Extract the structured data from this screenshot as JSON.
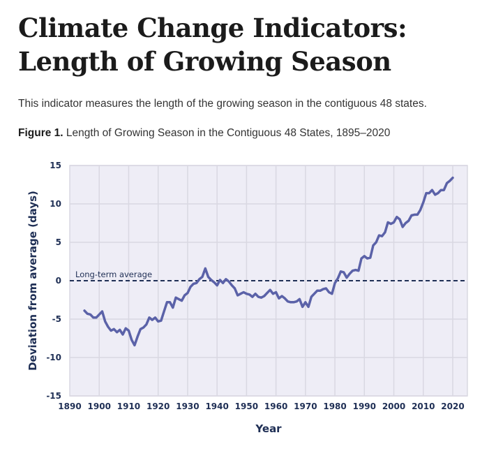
{
  "page": {
    "title_line1": "Climate Change Indicators:",
    "title_line2": "Length of Growing Season",
    "intro": "This indicator measures the length of the growing season in the contiguous 48 states.",
    "figure_label": "Figure 1.",
    "figure_caption": "Length of Growing Season in the Contiguous 48 States, 1895–2020"
  },
  "colors": {
    "line": "#5b62a8",
    "plot_background": "#eeedf6",
    "grid": "#d9d8e2",
    "axis_text": "#1f2f55",
    "reference_line": "#1f2f55"
  },
  "chart_data": {
    "type": "line",
    "title": "Length of Growing Season in the Contiguous 48 States, 1895–2020",
    "xlabel": "Year",
    "ylabel": "Deviation from average (days)",
    "xlim": [
      1890,
      2025
    ],
    "ylim": [
      -15,
      15
    ],
    "x_ticks": [
      1890,
      1900,
      1910,
      1920,
      1930,
      1940,
      1950,
      1960,
      1970,
      1980,
      1990,
      2000,
      2010,
      2020
    ],
    "y_ticks": [
      -15,
      -10,
      -5,
      0,
      5,
      10,
      15
    ],
    "grid": true,
    "legend": "none",
    "annotations": [
      {
        "text": "Long-term average",
        "y": 0,
        "style": "dashed reference line"
      }
    ],
    "series": [
      {
        "name": "Length of growing season deviation",
        "x": [
          1895,
          1896,
          1897,
          1898,
          1899,
          1900,
          1901,
          1902,
          1903,
          1904,
          1905,
          1906,
          1907,
          1908,
          1909,
          1910,
          1911,
          1912,
          1913,
          1914,
          1915,
          1916,
          1917,
          1918,
          1919,
          1920,
          1921,
          1922,
          1923,
          1924,
          1925,
          1926,
          1927,
          1928,
          1929,
          1930,
          1931,
          1932,
          1933,
          1934,
          1935,
          1936,
          1937,
          1938,
          1939,
          1940,
          1941,
          1942,
          1943,
          1944,
          1945,
          1946,
          1947,
          1948,
          1949,
          1950,
          1951,
          1952,
          1953,
          1954,
          1955,
          1956,
          1957,
          1958,
          1959,
          1960,
          1961,
          1962,
          1963,
          1964,
          1965,
          1966,
          1967,
          1968,
          1969,
          1970,
          1971,
          1972,
          1973,
          1974,
          1975,
          1976,
          1977,
          1978,
          1979,
          1980,
          1981,
          1982,
          1983,
          1984,
          1985,
          1986,
          1987,
          1988,
          1989,
          1990,
          1991,
          1992,
          1993,
          1994,
          1995,
          1996,
          1997,
          1998,
          1999,
          2000,
          2001,
          2002,
          2003,
          2004,
          2005,
          2006,
          2007,
          2008,
          2009,
          2010,
          2011,
          2012,
          2013,
          2014,
          2015,
          2016,
          2017,
          2018,
          2019,
          2020
        ],
        "values": [
          -3.9,
          -4.3,
          -4.4,
          -4.8,
          -4.8,
          -4.4,
          -4.0,
          -5.3,
          -6.0,
          -6.5,
          -6.3,
          -6.7,
          -6.4,
          -7.0,
          -6.2,
          -6.5,
          -7.7,
          -8.4,
          -7.3,
          -6.3,
          -6.1,
          -5.7,
          -4.8,
          -5.1,
          -4.8,
          -5.3,
          -5.2,
          -4.0,
          -2.8,
          -2.8,
          -3.5,
          -2.2,
          -2.4,
          -2.6,
          -1.9,
          -1.6,
          -0.8,
          -0.4,
          -0.3,
          0.2,
          0.5,
          1.6,
          0.5,
          0.1,
          -0.2,
          -0.6,
          0.1,
          -0.3,
          0.2,
          -0.1,
          -0.6,
          -1.0,
          -1.9,
          -1.7,
          -1.5,
          -1.7,
          -1.8,
          -2.1,
          -1.7,
          -2.1,
          -2.2,
          -2.0,
          -1.6,
          -1.2,
          -1.7,
          -1.5,
          -2.3,
          -2.0,
          -2.3,
          -2.7,
          -2.8,
          -2.8,
          -2.7,
          -2.4,
          -3.4,
          -2.8,
          -3.4,
          -2.1,
          -1.7,
          -1.3,
          -1.3,
          -1.1,
          -1.0,
          -1.5,
          -1.7,
          -0.3,
          0.3,
          1.2,
          1.1,
          0.4,
          0.9,
          1.3,
          1.4,
          1.3,
          2.9,
          3.2,
          2.9,
          3.0,
          4.6,
          5.0,
          5.9,
          5.8,
          6.3,
          7.6,
          7.4,
          7.6,
          8.3,
          8.0,
          7.0,
          7.5,
          7.8,
          8.5,
          8.6,
          8.6,
          9.2,
          10.2,
          11.4,
          11.4,
          11.8,
          11.2,
          11.4,
          11.8,
          11.8,
          12.7,
          13.0,
          13.4
        ]
      }
    ]
  }
}
